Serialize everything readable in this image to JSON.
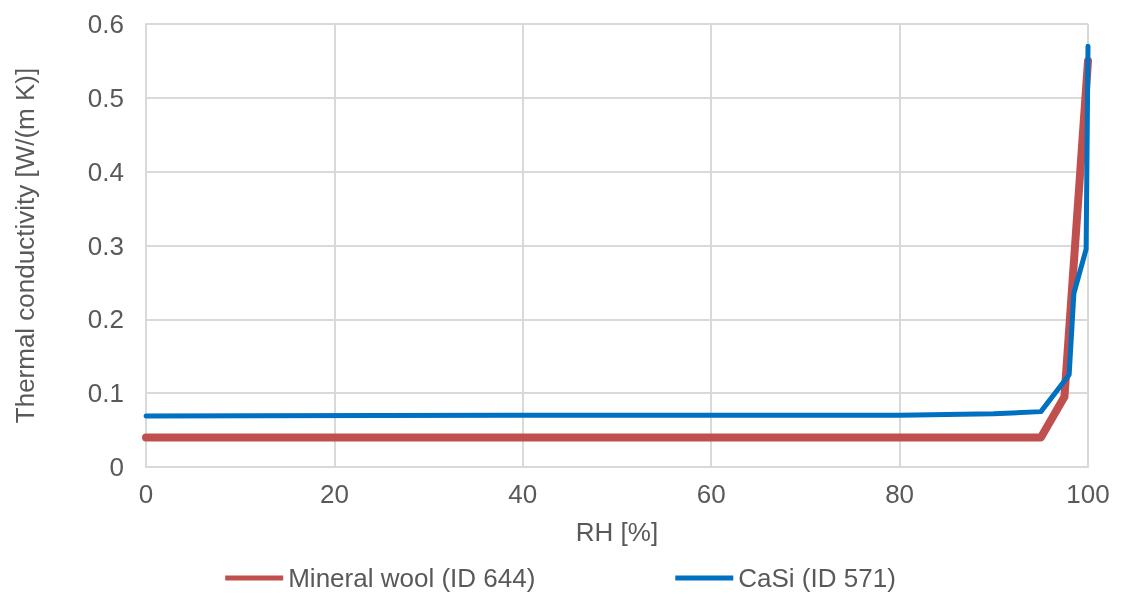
{
  "chart_data": {
    "type": "line",
    "xlabel": "RH [%]",
    "ylabel": "Thermal conductivity [W/(m K)]",
    "xlim": [
      0,
      100
    ],
    "xticks": [
      0,
      20,
      40,
      60,
      80,
      100
    ],
    "ylim": [
      0,
      0.6
    ],
    "yticks": [
      0,
      0.1,
      0.2,
      0.3,
      0.4,
      0.5,
      0.6
    ],
    "grid": true,
    "legend": "bottom",
    "marker": "none",
    "line_style": "solid",
    "series": [
      {
        "name": "Mineral wool (ID 644)",
        "color": "#c0504d",
        "x": [
          0,
          80,
          95,
          97.5,
          100
        ],
        "values": [
          0.04,
          0.04,
          0.04,
          0.095,
          0.55
        ]
      },
      {
        "name": "CaSi (ID 571)",
        "color": "#0070c0",
        "x": [
          0,
          40,
          80,
          90,
          95,
          98,
          98.5,
          99.8,
          100
        ],
        "values": [
          0.069,
          0.07,
          0.07,
          0.072,
          0.075,
          0.125,
          0.235,
          0.295,
          0.57
        ]
      }
    ]
  }
}
